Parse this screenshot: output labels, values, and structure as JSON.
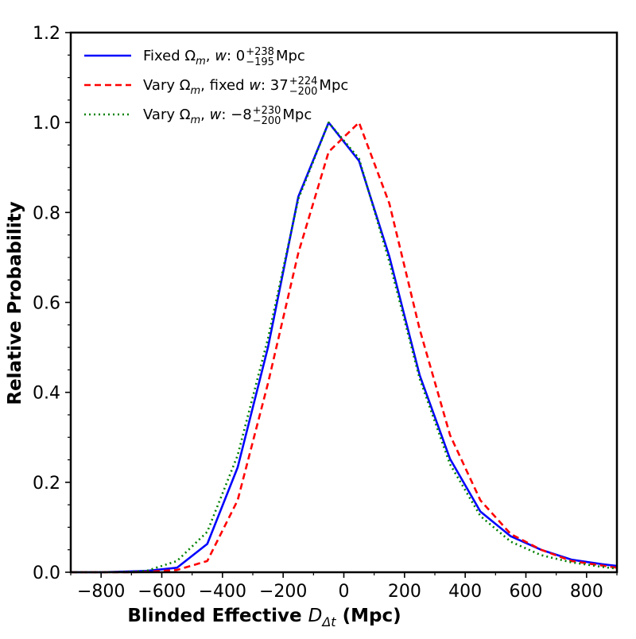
{
  "chart_data": {
    "type": "line",
    "title": "",
    "xlabel": "Blinded Effective D_Δt (Mpc)",
    "xlabel_parts": {
      "prefix": "Blinded Effective ",
      "var": "D",
      "sub": "Δt",
      "suffix": " (Mpc)"
    },
    "ylabel": "Relative Probability",
    "xlim": [
      -900,
      900
    ],
    "ylim": [
      0,
      1.2
    ],
    "xticks": [
      -800,
      -600,
      -400,
      -200,
      0,
      200,
      400,
      600,
      800
    ],
    "xtick_labels": [
      "−800",
      "−600",
      "−400",
      "−200",
      "0",
      "200",
      "400",
      "600",
      "800"
    ],
    "yticks": [
      0.0,
      0.2,
      0.4,
      0.6,
      0.8,
      1.0,
      1.2
    ],
    "ytick_labels": [
      "0.0",
      "0.2",
      "0.4",
      "0.6",
      "0.8",
      "1.0",
      "1.2"
    ],
    "x_minor_step": 100,
    "y_minor_step": 0.05,
    "grid": false,
    "legend_position": "top-left",
    "series": [
      {
        "name": "Fixed Ω_m, w: 0 (+238 / −195) Mpc",
        "label": {
          "pre": "Fixed Ω",
          "sub": "m",
          "mid": ", ",
          "var": "w",
          "post": ": 0",
          "sup": "+238",
          "low": "−195",
          "unit": " Mpc"
        },
        "color": "#0000ff",
        "style": "solid",
        "x": [
          -900,
          -800,
          -700,
          -650,
          -550,
          -450,
          -350,
          -250,
          -150,
          -50,
          50,
          150,
          250,
          350,
          450,
          550,
          650,
          750,
          850,
          900
        ],
        "y": [
          0.0,
          0.0,
          0.002,
          0.003,
          0.01,
          0.063,
          0.233,
          0.5,
          0.835,
          1.0,
          0.915,
          0.702,
          0.438,
          0.252,
          0.135,
          0.08,
          0.05,
          0.028,
          0.018,
          0.014
        ]
      },
      {
        "name": "Vary Ω_m, fixed w: 37 (+224 / −200) Mpc",
        "label": {
          "pre": "Vary Ω",
          "sub": "m",
          "mid": ", fixed ",
          "var": "w",
          "post": ": 37",
          "sup": "+224",
          "low": "−200",
          "unit": " Mpc"
        },
        "color": "#ff0000",
        "style": "dashed",
        "x": [
          -900,
          -800,
          -700,
          -650,
          -550,
          -450,
          -350,
          -250,
          -150,
          -50,
          50,
          150,
          250,
          350,
          450,
          550,
          650,
          750,
          850,
          900
        ],
        "y": [
          0.0,
          0.0,
          0.0,
          0.001,
          0.005,
          0.025,
          0.16,
          0.42,
          0.71,
          0.935,
          1.0,
          0.82,
          0.54,
          0.305,
          0.16,
          0.085,
          0.05,
          0.025,
          0.015,
          0.01
        ]
      },
      {
        "name": "Vary Ω_m, w: −8 (+230 / −200) Mpc",
        "label": {
          "pre": "Vary Ω",
          "sub": "m",
          "mid": ", ",
          "var": "w",
          "post": ": −8",
          "sup": "+230",
          "low": "−200",
          "unit": " Mpc"
        },
        "color": "#008000",
        "style": "dotted",
        "x": [
          -900,
          -800,
          -700,
          -650,
          -550,
          -450,
          -350,
          -250,
          -150,
          -50,
          50,
          150,
          250,
          350,
          450,
          550,
          650,
          750,
          850,
          900
        ],
        "y": [
          0.0,
          0.0,
          0.001,
          0.003,
          0.025,
          0.09,
          0.26,
          0.52,
          0.83,
          1.0,
          0.92,
          0.69,
          0.43,
          0.24,
          0.125,
          0.068,
          0.038,
          0.022,
          0.012,
          0.008
        ]
      }
    ]
  }
}
